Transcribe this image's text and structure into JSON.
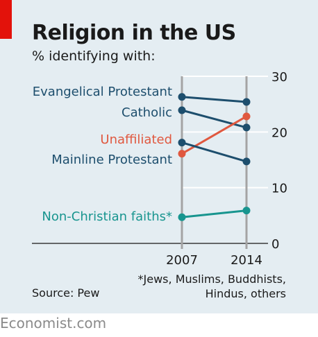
{
  "header": {
    "title": "Religion in the US",
    "subtitle": "% identifying with:"
  },
  "footer": {
    "source": "Source: Pew",
    "footnote_line1": "*Jews, Muslims, Buddhists,",
    "footnote_line2": "Hindus, others",
    "brand": "Economist.com"
  },
  "colors": {
    "navy": "#1d4e6d",
    "unaffiliated": "#e0583f",
    "non_christian": "#18958f",
    "background": "#e4edf2",
    "accent_red": "#e3120b"
  },
  "chart_data": {
    "type": "line",
    "x": [
      "2007",
      "2014"
    ],
    "ylim": [
      0,
      30
    ],
    "yticks": [
      "0",
      "10",
      "20",
      "30"
    ],
    "grid": true,
    "series": [
      {
        "name": "Evangelical Protestant",
        "values": [
          26.3,
          25.4
        ],
        "color": "#1d4e6d"
      },
      {
        "name": "Catholic",
        "values": [
          23.9,
          20.8
        ],
        "color": "#1d4e6d"
      },
      {
        "name": "Unaffiliated",
        "values": [
          16.1,
          22.8
        ],
        "color": "#e0583f"
      },
      {
        "name": "Mainline Protestant",
        "values": [
          18.1,
          14.7
        ],
        "color": "#1d4e6d"
      },
      {
        "name": "Non-Christian faiths*",
        "values": [
          4.7,
          5.9
        ],
        "color": "#18958f"
      }
    ]
  }
}
